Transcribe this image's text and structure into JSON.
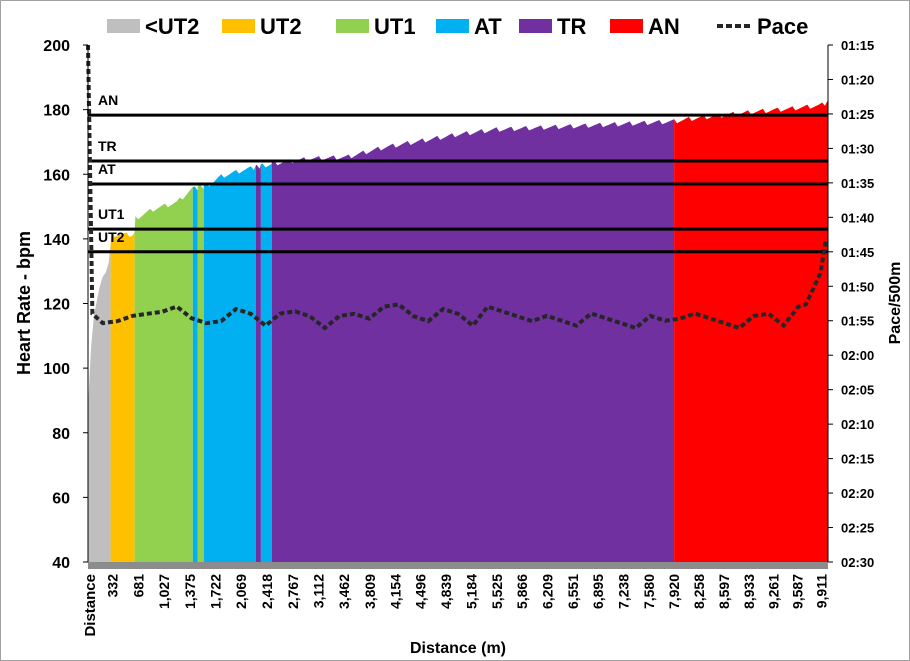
{
  "chart_data": {
    "type": "area",
    "xlabel": "Distance (m)",
    "ylabel": "Heart Rate - bpm",
    "y2label": "Pace/500m",
    "xlim": [
      0,
      10000
    ],
    "ylim": [
      40,
      200
    ],
    "y2lim_seconds": [
      75,
      150
    ],
    "yticks": [
      "40",
      "60",
      "80",
      "100",
      "120",
      "140",
      "160",
      "180",
      "200"
    ],
    "y2ticks": [
      "01:15",
      "01:20",
      "01:25",
      "01:30",
      "01:35",
      "01:40",
      "01:45",
      "01:50",
      "01:55",
      "02:00",
      "02:05",
      "02:10",
      "02:15",
      "02:20",
      "02:25",
      "02:30"
    ],
    "xticks": [
      {
        "label": "Distance",
        "value": 0
      },
      {
        "label": "332",
        "value": 332
      },
      {
        "label": "681",
        "value": 681
      },
      {
        "label": "1,027",
        "value": 1027
      },
      {
        "label": "1,375",
        "value": 1375
      },
      {
        "label": "1,722",
        "value": 1722
      },
      {
        "label": "2,069",
        "value": 2069
      },
      {
        "label": "2,418",
        "value": 2418
      },
      {
        "label": "2,767",
        "value": 2767
      },
      {
        "label": "3,112",
        "value": 3112
      },
      {
        "label": "3,462",
        "value": 3462
      },
      {
        "label": "3,809",
        "value": 3809
      },
      {
        "label": "4,154",
        "value": 4154
      },
      {
        "label": "4,496",
        "value": 4496
      },
      {
        "label": "4,839",
        "value": 4839
      },
      {
        "label": "5,184",
        "value": 5184
      },
      {
        "label": "5,525",
        "value": 5525
      },
      {
        "label": "5,866",
        "value": 5866
      },
      {
        "label": "6,209",
        "value": 6209
      },
      {
        "label": "6,551",
        "value": 6551
      },
      {
        "label": "6,895",
        "value": 6895
      },
      {
        "label": "7,238",
        "value": 7238
      },
      {
        "label": "7,580",
        "value": 7580
      },
      {
        "label": "7,920",
        "value": 7920
      },
      {
        "label": "8,258",
        "value": 8258
      },
      {
        "label": "8,597",
        "value": 8597
      },
      {
        "label": "8,933",
        "value": 8933
      },
      {
        "label": "9,261",
        "value": 9261
      },
      {
        "label": "9,587",
        "value": 9587
      },
      {
        "label": "9,911",
        "value": 9911
      }
    ],
    "legend": [
      {
        "label": "<UT2",
        "color": "#BFBFBF",
        "type": "area"
      },
      {
        "label": "UT2",
        "color": "#FFC000",
        "type": "area"
      },
      {
        "label": "UT1",
        "color": "#92D050",
        "type": "area"
      },
      {
        "label": "AT",
        "color": "#00B0F0",
        "type": "area"
      },
      {
        "label": "TR",
        "color": "#7030A0",
        "type": "area"
      },
      {
        "label": "AN",
        "color": "#FF0000",
        "type": "area"
      },
      {
        "label": "Pace",
        "color": "#262626",
        "type": "dashed-line"
      }
    ],
    "legend_position": "top",
    "zone_thresholds": [
      {
        "label": "AN",
        "hr": 178.3
      },
      {
        "label": "TR",
        "hr": 164.1
      },
      {
        "label": "AT",
        "hr": 157
      },
      {
        "label": "UT1",
        "hr": 143
      },
      {
        "label": "UT2",
        "hr": 136
      }
    ],
    "zone_segments": [
      {
        "zone": "<UT2",
        "color": "#BFBFBF",
        "from": 0,
        "to": 305
      },
      {
        "zone": "UT2",
        "color": "#FFC000",
        "from": 305,
        "to": 630
      },
      {
        "zone": "UT1",
        "color": "#92D050",
        "from": 630,
        "to": 1416
      },
      {
        "zone": "AT",
        "color": "#00B0F0",
        "from": 1416,
        "to": 1484
      },
      {
        "zone": "UT1",
        "color": "#92D050",
        "from": 1484,
        "to": 1565
      },
      {
        "zone": "AT",
        "color": "#00B0F0",
        "from": 1565,
        "to": 2270
      },
      {
        "zone": "TR",
        "color": "#7030A0",
        "from": 2270,
        "to": 2337
      },
      {
        "zone": "AT",
        "color": "#00B0F0",
        "from": 2337,
        "to": 2486
      },
      {
        "zone": "TR",
        "color": "#7030A0",
        "from": 2486,
        "to": 7920
      },
      {
        "zone": "AN",
        "color": "#FF0000",
        "from": 7920,
        "to": 10000
      }
    ],
    "heart_rate": [
      [
        0,
        88
      ],
      [
        20,
        100
      ],
      [
        60,
        115
      ],
      [
        150,
        125
      ],
      [
        300,
        135
      ],
      [
        310,
        142
      ],
      [
        630,
        142
      ],
      [
        640,
        147
      ],
      [
        900,
        150
      ],
      [
        1200,
        152
      ],
      [
        1400,
        156
      ],
      [
        1600,
        157
      ],
      [
        1800,
        160
      ],
      [
        2100,
        162
      ],
      [
        2300,
        163
      ],
      [
        2500,
        164
      ],
      [
        3000,
        165.5
      ],
      [
        3500,
        166
      ],
      [
        4000,
        169
      ],
      [
        4500,
        171
      ],
      [
        5000,
        173
      ],
      [
        5500,
        174.5
      ],
      [
        6000,
        175
      ],
      [
        7000,
        176
      ],
      [
        7900,
        177
      ],
      [
        8200,
        178
      ],
      [
        8600,
        179
      ],
      [
        9000,
        180
      ],
      [
        9500,
        181
      ],
      [
        9900,
        182
      ],
      [
        10000,
        183
      ]
    ],
    "pace_seconds": [
      [
        0,
        75
      ],
      [
        60,
        114
      ],
      [
        200,
        115
      ],
      [
        400,
        114
      ],
      [
        600,
        115
      ],
      [
        800,
        114
      ],
      [
        1000,
        113
      ],
      [
        1200,
        114
      ],
      [
        1400,
        115
      ],
      [
        1600,
        115
      ],
      [
        1800,
        114
      ],
      [
        2000,
        114
      ],
      [
        2200,
        114
      ],
      [
        2400,
        115
      ],
      [
        2600,
        115
      ],
      [
        2800,
        114
      ],
      [
        3000,
        114
      ],
      [
        3200,
        115
      ],
      [
        3400,
        115
      ],
      [
        3600,
        114
      ],
      [
        3800,
        114
      ],
      [
        4000,
        114
      ],
      [
        4200,
        113
      ],
      [
        4400,
        114
      ],
      [
        4600,
        114
      ],
      [
        4800,
        114
      ],
      [
        5000,
        114
      ],
      [
        5200,
        115
      ],
      [
        5400,
        114
      ],
      [
        5600,
        114
      ],
      [
        5800,
        114
      ],
      [
        6000,
        114
      ],
      [
        6200,
        115
      ],
      [
        6400,
        115
      ],
      [
        6600,
        115
      ],
      [
        6800,
        115
      ],
      [
        7000,
        115
      ],
      [
        7200,
        115
      ],
      [
        7400,
        115
      ],
      [
        7600,
        115
      ],
      [
        7800,
        115
      ],
      [
        8000,
        114
      ],
      [
        8200,
        115
      ],
      [
        8400,
        115
      ],
      [
        8600,
        115
      ],
      [
        8800,
        115
      ],
      [
        9000,
        115
      ],
      [
        9200,
        114
      ],
      [
        9400,
        115
      ],
      [
        9600,
        114
      ],
      [
        9700,
        113
      ],
      [
        9800,
        110
      ],
      [
        9900,
        107
      ],
      [
        9970,
        104
      ]
    ]
  }
}
